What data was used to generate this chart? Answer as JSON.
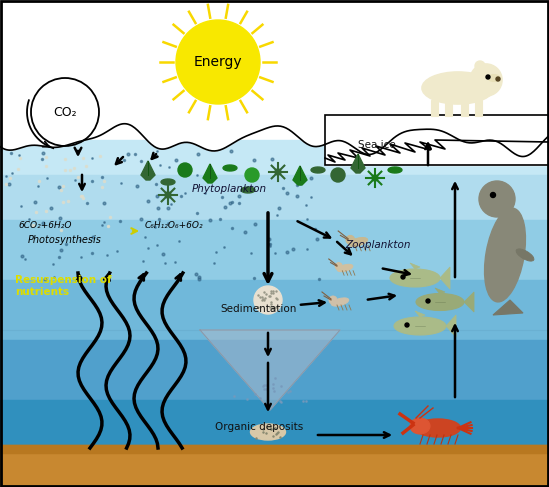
{
  "sun_label": "Energy",
  "co2_label": "CO₂",
  "photosynthesis_eq1": "6CO₂+6H₂O",
  "photosynthesis_eq2": "C₆H₁₂O₆+6O₂",
  "photosynthesis_label": "Photosynthesis",
  "phytoplankton_label": "Phytoplankton",
  "zooplankton_label": "Zooplankton",
  "sedimentation_label": "Sedimentation",
  "organic_label": "Organic deposits",
  "resuspension_label": "Resuspension of\nnutrients",
  "sea_ice_label": "Sea ice",
  "sky_color": "#ffffff",
  "water_color1": "#c8e8f4",
  "water_color2": "#a0d4e8",
  "water_color3": "#70b8d8",
  "water_color4": "#4898c0",
  "water_color5": "#2878a8",
  "seabed_color": "#c8883a",
  "sun_color": "#f8e800",
  "sun_ray_color": "#f0d000"
}
